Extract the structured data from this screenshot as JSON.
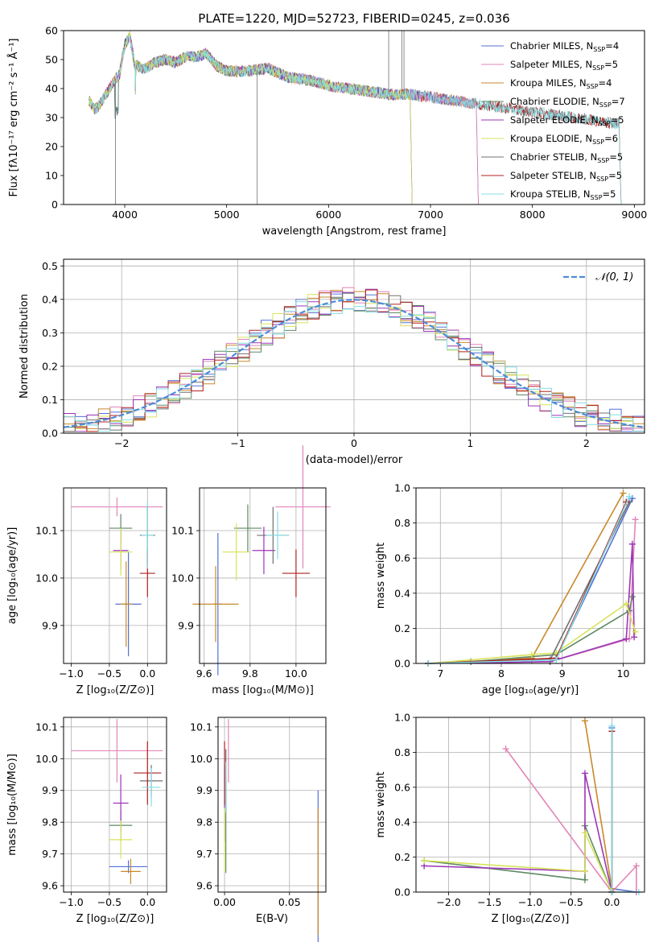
{
  "figure_title": "PLATE=1220, MJD=52723, FIBERID=0245, z=0.036",
  "colors": {
    "series": [
      "#5470d6",
      "#e286b8",
      "#c8892b",
      "#5f8a63",
      "#9b36b8",
      "#d7e35a",
      "#707070",
      "#b22222",
      "#84dde3"
    ],
    "grid": "#b0b0b0",
    "gauss": "#4c8bd8"
  },
  "chart_data": [
    {
      "id": "spectrum",
      "type": "line",
      "title": "PLATE=1220, MJD=52723, FIBERID=0245, z=0.036",
      "xlabel": "wavelength [Angstrom, rest frame]",
      "ylabel": "Flux [fλ10⁻¹⁷ erg cm⁻² s⁻¹ Å⁻¹]",
      "xlim": [
        3400,
        9100
      ],
      "ylim": [
        0,
        60
      ],
      "xticks": [
        "4000",
        "5000",
        "6000",
        "7000",
        "8000",
        "9000"
      ],
      "yticks": [
        "0",
        "10",
        "20",
        "30",
        "40",
        "50",
        "60"
      ],
      "legend_position": "top-right",
      "grid": false,
      "x": [
        3650,
        3700,
        3750,
        3800,
        3850,
        3900,
        3950,
        4000,
        4050,
        4100,
        4200,
        4300,
        4400,
        4500,
        4600,
        4700,
        4800,
        4900,
        5000,
        5200,
        5400,
        5600,
        5800,
        6000,
        6200,
        6400,
        6600,
        6800,
        7000,
        7200,
        7400,
        7600,
        7800,
        8000,
        8200,
        8400,
        8600,
        8800
      ],
      "model_flux": [
        36,
        33,
        34,
        37,
        40,
        43,
        45,
        55,
        58,
        48,
        47,
        49,
        50,
        49,
        51,
        51,
        52,
        48,
        46,
        46,
        47,
        44,
        43,
        41,
        40,
        39,
        38,
        38,
        37,
        36,
        35,
        34,
        33,
        32,
        31,
        30,
        29,
        28
      ],
      "series": [
        {
          "name": "Chabrier MILES, N_SSP=4",
          "label_main": "Chabrier MILES, N",
          "label_sub": "SSP",
          "label_tail": "=4",
          "end_wavelength": 7450
        },
        {
          "name": "Salpeter MILES, N_SSP=5",
          "label_main": "Salpeter MILES, N",
          "label_sub": "SSP",
          "label_tail": "=5",
          "end_wavelength": 7450
        },
        {
          "name": "Kroupa MILES, N_SSP=4",
          "label_main": "Kroupa MILES, N",
          "label_sub": "SSP",
          "label_tail": "=4",
          "end_wavelength": 7450
        },
        {
          "name": "Chabrier ELODIE, N_SSP=7",
          "label_main": "Chabrier ELODIE, N",
          "label_sub": "SSP",
          "label_tail": "=7",
          "end_wavelength": 6800
        },
        {
          "name": "Salpeter ELODIE, N_SSP=5",
          "label_main": "Salpeter ELODIE, N",
          "label_sub": "SSP",
          "label_tail": "=5",
          "end_wavelength": 6800
        },
        {
          "name": "Kroupa ELODIE, N_SSP=6",
          "label_main": "Kroupa ELODIE, N",
          "label_sub": "SSP",
          "label_tail": "=6",
          "end_wavelength": 6800
        },
        {
          "name": "Chabrier STELIB, N_SSP=5",
          "label_main": "Chabrier STELIB, N",
          "label_sub": "SSP",
          "label_tail": "=5",
          "end_wavelength": 8850
        },
        {
          "name": "Salpeter STELIB, N_SSP=5",
          "label_main": "Salpeter STELIB, N",
          "label_sub": "SSP",
          "label_tail": "=5",
          "end_wavelength": 8850
        },
        {
          "name": "Kroupa STELIB, N_SSP=5",
          "label_main": "Kroupa STELIB, N",
          "label_sub": "SSP",
          "label_tail": "=5",
          "end_wavelength": 8850
        }
      ]
    },
    {
      "id": "residuals",
      "type": "histogram",
      "xlabel": "(data-model)/error",
      "ylabel": "Normed distribution",
      "xlim": [
        -2.5,
        2.5
      ],
      "ylim": [
        0,
        0.52
      ],
      "xticks": [
        "−2",
        "−1",
        "0",
        "1",
        "2"
      ],
      "yticks": [
        "0.0",
        "0.1",
        "0.2",
        "0.3",
        "0.4",
        "0.5"
      ],
      "grid": true,
      "legend": "𝒩(0, 1)",
      "legend_position": "top-right",
      "bin_width": 0.1
    },
    {
      "id": "age-vs-Z",
      "type": "errorbar",
      "xlabel": "Z [log₁₀(Z/Z⊙)]",
      "ylabel": "age  [log₁₀(age/yr)]",
      "xlim": [
        -1.1,
        0.25
      ],
      "ylim": [
        9.82,
        10.19
      ],
      "xticks": [
        "−1.0",
        "−0.5",
        "0.0"
      ],
      "yticks": [
        "9.9",
        "10.0",
        "10.1"
      ],
      "points": [
        {
          "x": -0.25,
          "y": 9.945,
          "xerr": 0.17,
          "yerr": 0.11
        },
        {
          "x": -0.4,
          "y": 10.15,
          "xerr": 0.6,
          "yerr": 0.02
        },
        {
          "x": -0.28,
          "y": 9.945,
          "xerr": 0.08,
          "yerr": 0.09
        },
        {
          "x": -0.35,
          "y": 10.105,
          "xerr": 0.15,
          "yerr": 0.03
        },
        {
          "x": -0.35,
          "y": 10.058,
          "xerr": 0.1,
          "yerr": 0.04
        },
        {
          "x": -0.35,
          "y": 10.055,
          "xerr": 0.15,
          "yerr": 0.05
        },
        {
          "x": 0.0,
          "y": 10.09,
          "xerr": 0.1,
          "yerr": 0.06
        },
        {
          "x": 0.0,
          "y": 10.01,
          "xerr": 0.1,
          "yerr": 0.05
        },
        {
          "x": 0.0,
          "y": 10.09,
          "xerr": 0.08,
          "yerr": 0.07
        }
      ]
    },
    {
      "id": "age-vs-mass",
      "type": "errorbar",
      "xlabel": "mass [log₁₀(M/M⊙)]",
      "xlim": [
        9.58,
        10.13
      ],
      "ylim": [
        9.82,
        10.19
      ],
      "xticks": [
        "9.6",
        "9.8",
        "10.0"
      ],
      "yticks": [
        "9.9",
        "10.0",
        "10.1"
      ],
      "points": [
        {
          "x": 9.66,
          "y": 9.945,
          "xerr": 0.02,
          "yerr": 0.15
        },
        {
          "x": 10.03,
          "y": 10.15,
          "xerr": 0.12,
          "yerr": 0.13
        },
        {
          "x": 9.65,
          "y": 9.945,
          "xerr": 0.1,
          "yerr": 0.08
        },
        {
          "x": 9.79,
          "y": 10.105,
          "xerr": 0.06,
          "yerr": 0.05
        },
        {
          "x": 9.86,
          "y": 10.058,
          "xerr": 0.05,
          "yerr": 0.05
        },
        {
          "x": 9.74,
          "y": 10.055,
          "xerr": 0.06,
          "yerr": 0.06
        },
        {
          "x": 9.9,
          "y": 10.09,
          "xerr": 0.07,
          "yerr": 0.06
        },
        {
          "x": 10.0,
          "y": 10.01,
          "xerr": 0.06,
          "yerr": 0.05
        },
        {
          "x": 9.92,
          "y": 10.09,
          "xerr": 0.05,
          "yerr": 0.05
        }
      ]
    },
    {
      "id": "weight-vs-age",
      "type": "line",
      "xlabel": "age  [log₁₀(age/yr)]",
      "ylabel": "mass weight",
      "xlim": [
        6.6,
        10.35
      ],
      "ylim": [
        0,
        1
      ],
      "xticks": [
        "7",
        "8",
        "9",
        "10"
      ],
      "yticks": [
        "0.0",
        "0.2",
        "0.4",
        "0.6",
        "0.8",
        "1.0"
      ],
      "grid": true,
      "series": [
        {
          "x": [
            6.8,
            7.5,
            8.5,
            8.9,
            10.15
          ],
          "y": [
            0.0,
            0.01,
            0.02,
            0.03,
            0.94
          ]
        },
        {
          "x": [
            6.8,
            8.0,
            8.8,
            10.1,
            10.2
          ],
          "y": [
            0.0,
            0.005,
            0.01,
            0.14,
            0.82
          ]
        },
        {
          "x": [
            6.8,
            8.5,
            10.0
          ],
          "y": [
            0.0,
            0.03,
            0.97
          ]
        },
        {
          "x": [
            6.8,
            7.5,
            8.9,
            10.1,
            10.15
          ],
          "y": [
            0.0,
            0.01,
            0.05,
            0.3,
            0.38
          ]
        },
        {
          "x": [
            6.8,
            8.8,
            10.05,
            10.15,
            10.18
          ],
          "y": [
            0.0,
            0.01,
            0.14,
            0.68,
            0.15
          ]
        },
        {
          "x": [
            6.8,
            8.5,
            8.9,
            10.05,
            10.2
          ],
          "y": [
            0.0,
            0.05,
            0.06,
            0.34,
            0.18
          ]
        },
        {
          "x": [
            6.8,
            8.8,
            10.1
          ],
          "y": [
            0.0,
            0.02,
            0.92
          ]
        },
        {
          "x": [
            6.8,
            8.9,
            10.05
          ],
          "y": [
            0.0,
            0.03,
            0.92
          ]
        },
        {
          "x": [
            6.8,
            8.9,
            10.1
          ],
          "y": [
            0.0,
            0.02,
            0.95
          ]
        }
      ]
    },
    {
      "id": "mass-vs-Z",
      "type": "errorbar",
      "xlabel": "Z [log₁₀(Z/Z⊙)]",
      "ylabel": "mass [log₁₀(M/M⊙)]",
      "xlim": [
        -1.1,
        0.25
      ],
      "ylim": [
        9.58,
        10.13
      ],
      "xticks": [
        "−1.0",
        "−0.5",
        "0.0"
      ],
      "yticks": [
        "9.6",
        "9.7",
        "9.8",
        "9.9",
        "10.0",
        "10.1"
      ],
      "points": [
        {
          "x": -0.25,
          "y": 9.66,
          "xerr": 0.25,
          "yerr": 0.02
        },
        {
          "x": -0.4,
          "y": 10.025,
          "xerr": 0.6,
          "yerr": 0.1
        },
        {
          "x": -0.22,
          "y": 9.645,
          "xerr": 0.13,
          "yerr": 0.04
        },
        {
          "x": -0.35,
          "y": 9.79,
          "xerr": 0.15,
          "yerr": 0.05
        },
        {
          "x": -0.35,
          "y": 9.86,
          "xerr": 0.1,
          "yerr": 0.09
        },
        {
          "x": -0.35,
          "y": 9.745,
          "xerr": 0.15,
          "yerr": 0.06
        },
        {
          "x": 0.05,
          "y": 9.93,
          "xerr": 0.15,
          "yerr": 0.05
        },
        {
          "x": 0.0,
          "y": 9.955,
          "xerr": 0.18,
          "yerr": 0.1
        },
        {
          "x": 0.05,
          "y": 9.91,
          "xerr": 0.12,
          "yerr": 0.06
        }
      ]
    },
    {
      "id": "mass-vs-EBV",
      "type": "errorbar",
      "xlabel": "E(B-V)",
      "xlim": [
        -0.005,
        0.078
      ],
      "ylim": [
        9.58,
        10.13
      ],
      "xticks": [
        "0.00",
        "0.05"
      ],
      "yticks": [
        "9.6",
        "9.7",
        "9.8",
        "9.9",
        "10.0",
        "10.1"
      ],
      "points": [
        {
          "x": 0.072,
          "y": 9.66,
          "xerr": 0,
          "yerr": 0.24
        },
        {
          "x": 0.003,
          "y": 10.025,
          "xerr": 0,
          "yerr": 0.1
        },
        {
          "x": 0.072,
          "y": 9.645,
          "xerr": 0,
          "yerr": 0.2
        },
        {
          "x": 0.001,
          "y": 9.79,
          "xerr": 0,
          "yerr": 0.15
        },
        {
          "x": 0.0,
          "y": 9.86,
          "xerr": 0,
          "yerr": 0.12
        },
        {
          "x": 0.0,
          "y": 9.745,
          "xerr": 0,
          "yerr": 0.1
        },
        {
          "x": 0.001,
          "y": 9.93,
          "xerr": 0,
          "yerr": 0.1
        },
        {
          "x": 0.0,
          "y": 9.955,
          "xerr": 0,
          "yerr": 0.1
        },
        {
          "x": 0.001,
          "y": 9.91,
          "xerr": 0,
          "yerr": 0.08
        }
      ]
    },
    {
      "id": "weight-vs-Z",
      "type": "line",
      "xlabel": "Z [log₁₀(Z/Z⊙)]",
      "ylabel": "mass weight",
      "xlim": [
        -2.4,
        0.4
      ],
      "ylim": [
        0,
        1
      ],
      "xticks": [
        "−2.0",
        "−1.5",
        "−1.0",
        "−0.5",
        "0.0"
      ],
      "yticks": [
        "0.0",
        "0.2",
        "0.4",
        "0.6",
        "0.8",
        "1.0"
      ],
      "grid": true,
      "series": [
        {
          "x": [
            0.0,
            0.0,
            0.3
          ],
          "y": [
            0.94,
            0.02,
            0.0
          ]
        },
        {
          "x": [
            -1.3,
            0.0,
            0.3,
            0.3
          ],
          "y": [
            0.82,
            0.0,
            0.15,
            0.0
          ]
        },
        {
          "x": [
            -0.33,
            0.0,
            0.0
          ],
          "y": [
            0.98,
            0.02,
            0.0
          ]
        },
        {
          "x": [
            -2.3,
            -0.33,
            -0.33,
            0.0
          ],
          "y": [
            0.18,
            0.07,
            0.38,
            0.0
          ]
        },
        {
          "x": [
            -2.3,
            -0.33,
            -0.33,
            0.0
          ],
          "y": [
            0.15,
            0.12,
            0.68,
            0.0
          ]
        },
        {
          "x": [
            -2.3,
            -0.33,
            -0.33,
            0.0
          ],
          "y": [
            0.18,
            0.12,
            0.34,
            0.0
          ]
        },
        {
          "x": [
            0.0,
            0.0
          ],
          "y": [
            0.92,
            0.0
          ]
        },
        {
          "x": [
            0.0,
            0.0
          ],
          "y": [
            0.92,
            0.0
          ]
        },
        {
          "x": [
            0.0,
            0.0,
            0.33
          ],
          "y": [
            0.95,
            0.0,
            0.0
          ]
        }
      ]
    }
  ]
}
